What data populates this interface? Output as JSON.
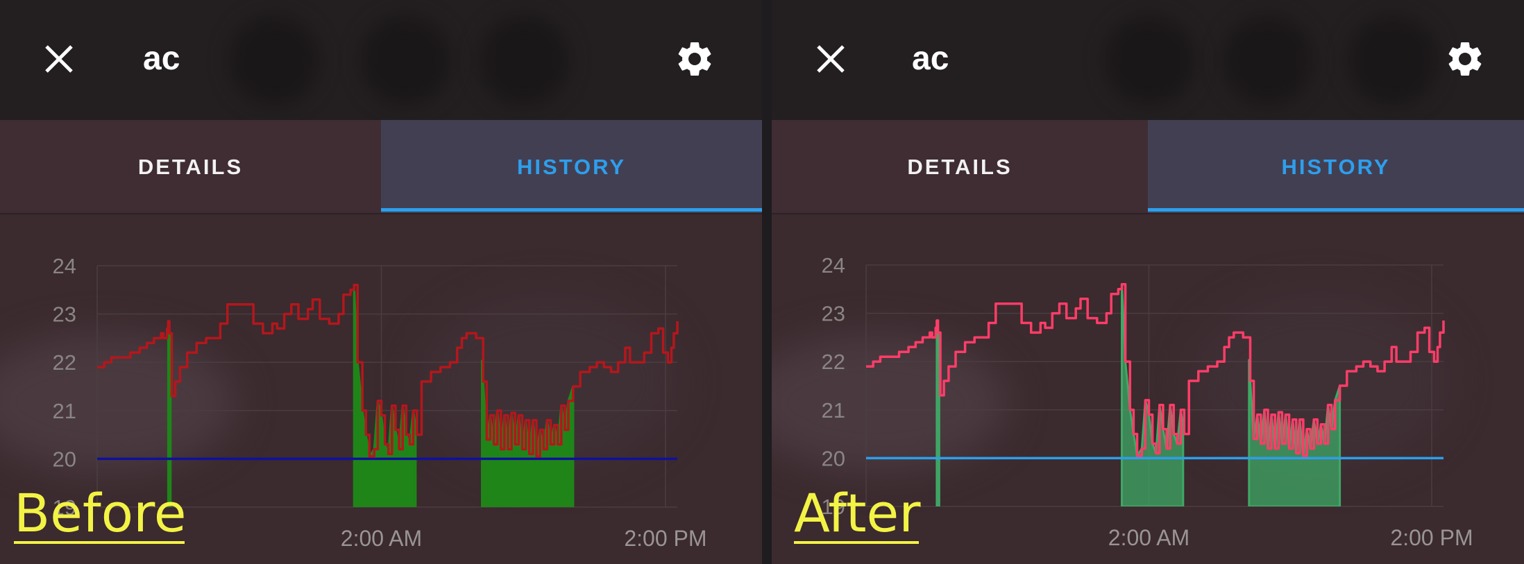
{
  "panels": [
    {
      "id": "before",
      "header": {
        "title": "ac"
      },
      "tabs": [
        {
          "label": "DETAILS"
        },
        {
          "label": "HISTORY",
          "active": true
        }
      ],
      "caption": "Before",
      "colors": {
        "temperature": "#b3171c",
        "setpoint": "#10109c",
        "heating_fill": "#1f8519",
        "heating_opacity": 1.0
      }
    },
    {
      "id": "after",
      "header": {
        "title": "ac"
      },
      "tabs": [
        {
          "label": "DETAILS"
        },
        {
          "label": "HISTORY",
          "active": true
        }
      ],
      "caption": "After",
      "colors": {
        "temperature": "#ff3d68",
        "setpoint": "#2d9fec",
        "heating_fill": "#3fa866",
        "heating_opacity": 0.75
      }
    }
  ],
  "icons": {
    "close": "close-icon",
    "settings": "gear-icon"
  },
  "chart_data": {
    "type": "line",
    "x_tick_labels": [
      "2:00 AM",
      "2:00 PM"
    ],
    "x_tick_hours": [
      12,
      24
    ],
    "xlim_hours": [
      0,
      24.5
    ],
    "y_ticks": [
      19,
      20,
      21,
      22,
      23,
      24
    ],
    "ylim": [
      19,
      24
    ],
    "grid": true,
    "series": [
      {
        "kind": "temperature",
        "points": [
          [
            0,
            21.9
          ],
          [
            0.3,
            22.0
          ],
          [
            0.6,
            22.1
          ],
          [
            1.0,
            22.1
          ],
          [
            1.4,
            22.2
          ],
          [
            1.8,
            22.3
          ],
          [
            2.1,
            22.4
          ],
          [
            2.4,
            22.5
          ],
          [
            2.7,
            22.6
          ],
          [
            2.8,
            22.5
          ],
          [
            2.95,
            22.7
          ],
          [
            3.0,
            22.85
          ],
          [
            3.05,
            22.6
          ],
          [
            3.15,
            21.3
          ],
          [
            3.3,
            21.6
          ],
          [
            3.5,
            21.9
          ],
          [
            3.8,
            22.2
          ],
          [
            4.2,
            22.4
          ],
          [
            4.6,
            22.5
          ],
          [
            4.9,
            22.5
          ],
          [
            5.2,
            22.8
          ],
          [
            5.5,
            23.2
          ],
          [
            6.0,
            23.2
          ],
          [
            6.4,
            23.2
          ],
          [
            6.6,
            22.8
          ],
          [
            7.0,
            22.6
          ],
          [
            7.4,
            22.8
          ],
          [
            7.6,
            22.7
          ],
          [
            7.9,
            23.0
          ],
          [
            8.2,
            23.2
          ],
          [
            8.5,
            22.9
          ],
          [
            8.9,
            23.1
          ],
          [
            9.1,
            23.3
          ],
          [
            9.4,
            22.9
          ],
          [
            9.8,
            22.8
          ],
          [
            10.2,
            23.0
          ],
          [
            10.4,
            23.4
          ],
          [
            10.7,
            23.5
          ],
          [
            10.85,
            23.6
          ],
          [
            11.0,
            22.0
          ],
          [
            11.2,
            21.0
          ],
          [
            11.35,
            20.5
          ],
          [
            11.5,
            20.05
          ],
          [
            11.7,
            20.2
          ],
          [
            11.85,
            21.2
          ],
          [
            12.0,
            20.9
          ],
          [
            12.15,
            20.3
          ],
          [
            12.3,
            20.1
          ],
          [
            12.45,
            21.1
          ],
          [
            12.6,
            20.6
          ],
          [
            12.75,
            20.2
          ],
          [
            12.9,
            21.1
          ],
          [
            13.05,
            20.5
          ],
          [
            13.2,
            20.3
          ],
          [
            13.35,
            21.0
          ],
          [
            13.5,
            20.5
          ],
          [
            13.7,
            21.6
          ],
          [
            14.1,
            21.8
          ],
          [
            14.5,
            21.9
          ],
          [
            14.9,
            22.0
          ],
          [
            15.2,
            22.3
          ],
          [
            15.4,
            22.5
          ],
          [
            15.6,
            22.6
          ],
          [
            16.0,
            22.5
          ],
          [
            16.2,
            22.5
          ],
          [
            16.3,
            21.6
          ],
          [
            16.45,
            20.4
          ],
          [
            16.6,
            20.9
          ],
          [
            16.75,
            20.3
          ],
          [
            16.9,
            21.0
          ],
          [
            17.05,
            20.2
          ],
          [
            17.2,
            20.9
          ],
          [
            17.35,
            20.2
          ],
          [
            17.5,
            20.95
          ],
          [
            17.65,
            20.3
          ],
          [
            17.8,
            20.9
          ],
          [
            17.95,
            20.2
          ],
          [
            18.1,
            20.8
          ],
          [
            18.25,
            20.1
          ],
          [
            18.4,
            20.8
          ],
          [
            18.55,
            20.05
          ],
          [
            18.7,
            20.6
          ],
          [
            18.85,
            20.2
          ],
          [
            19.0,
            20.8
          ],
          [
            19.15,
            20.3
          ],
          [
            19.3,
            20.7
          ],
          [
            19.45,
            20.3
          ],
          [
            19.6,
            21.1
          ],
          [
            19.75,
            20.6
          ],
          [
            19.9,
            21.2
          ],
          [
            20.1,
            21.5
          ],
          [
            20.4,
            21.8
          ],
          [
            20.8,
            21.9
          ],
          [
            21.1,
            22.0
          ],
          [
            21.4,
            21.9
          ],
          [
            21.7,
            21.8
          ],
          [
            22.0,
            22.0
          ],
          [
            22.3,
            22.3
          ],
          [
            22.5,
            22.0
          ],
          [
            22.8,
            22.0
          ],
          [
            23.1,
            22.2
          ],
          [
            23.4,
            22.6
          ],
          [
            23.7,
            22.7
          ],
          [
            23.9,
            22.2
          ],
          [
            24.1,
            22.0
          ],
          [
            24.25,
            22.3
          ],
          [
            24.35,
            22.6
          ],
          [
            24.5,
            22.85
          ]
        ]
      },
      {
        "kind": "setpoint",
        "points": [
          [
            0,
            20.0
          ],
          [
            24.5,
            20.0
          ]
        ]
      }
    ],
    "heating_periods": [
      {
        "start": 3.0,
        "end": 3.1
      },
      {
        "start": 10.85,
        "end": 13.45
      },
      {
        "start": 16.25,
        "end": 20.1
      }
    ]
  }
}
